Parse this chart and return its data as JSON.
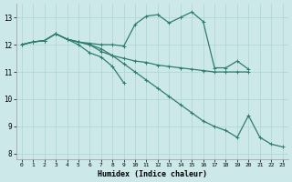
{
  "bg_color": "#cce8e8",
  "grid_color": "#aad4d4",
  "line_color": "#2e7d6e",
  "xlabel": "Humidex (Indice chaleur)",
  "xlim": [
    -0.5,
    23.5
  ],
  "ylim": [
    7.8,
    13.5
  ],
  "xticks": [
    0,
    1,
    2,
    3,
    4,
    5,
    6,
    7,
    8,
    9,
    10,
    11,
    12,
    13,
    14,
    15,
    16,
    17,
    18,
    19,
    20,
    21,
    22,
    23
  ],
  "yticks": [
    8,
    9,
    10,
    11,
    12,
    13
  ],
  "lines": [
    {
      "x": [
        0,
        1,
        2,
        3,
        4,
        5,
        6,
        7,
        8,
        9,
        10,
        11,
        12,
        13,
        14,
        15,
        16,
        17,
        18,
        19,
        20
      ],
      "y": [
        12.0,
        12.1,
        12.15,
        12.4,
        12.2,
        12.1,
        12.05,
        12.0,
        12.0,
        11.95,
        12.75,
        13.05,
        13.1,
        12.8,
        13.0,
        13.2,
        12.85,
        11.15,
        11.15,
        11.4,
        11.1
      ]
    },
    {
      "x": [
        0,
        1,
        2,
        3,
        4,
        5,
        6,
        7,
        8,
        9,
        10,
        11,
        12,
        13,
        14,
        15,
        16,
        17,
        18,
        19,
        20
      ],
      "y": [
        12.0,
        12.1,
        12.15,
        12.4,
        12.2,
        12.1,
        12.0,
        11.75,
        11.6,
        11.5,
        11.4,
        11.35,
        11.25,
        11.2,
        11.15,
        11.1,
        11.05,
        11.0,
        11.0,
        11.0,
        11.0
      ]
    },
    {
      "x": [
        3,
        4,
        5,
        6,
        7,
        8,
        9
      ],
      "y": [
        12.4,
        12.2,
        12.0,
        11.7,
        11.55,
        11.2,
        10.6
      ]
    },
    {
      "x": [
        0,
        1,
        2,
        3,
        4,
        5,
        6,
        7,
        8,
        9,
        10,
        11,
        12,
        13,
        14,
        15,
        16,
        17,
        18,
        19,
        20,
        21,
        22,
        23
      ],
      "y": [
        12.0,
        12.1,
        12.15,
        12.4,
        12.2,
        12.1,
        12.0,
        11.85,
        11.6,
        11.3,
        11.0,
        10.7,
        10.4,
        10.1,
        9.8,
        9.5,
        9.2,
        9.0,
        8.85,
        8.6,
        9.4,
        8.6,
        8.35,
        8.25
      ]
    }
  ]
}
